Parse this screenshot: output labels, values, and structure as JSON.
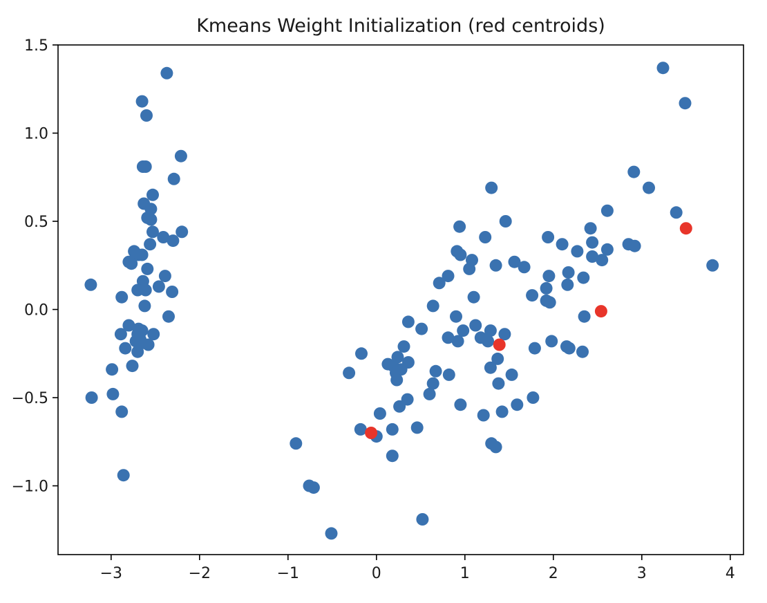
{
  "chart_data": {
    "type": "scatter",
    "title": "Kmeans Weight Initialization (red centroids)",
    "xlabel": "",
    "ylabel": "",
    "xlim": [
      -3.6,
      4.15
    ],
    "ylim": [
      -1.39,
      1.5
    ],
    "xticks": [
      -3,
      -2,
      -1,
      0,
      1,
      2,
      3,
      4
    ],
    "xtick_labels": [
      "−3",
      "−2",
      "−1",
      "0",
      "1",
      "2",
      "3",
      "4"
    ],
    "yticks": [
      -1.0,
      -0.5,
      0.0,
      0.5,
      1.0,
      1.5
    ],
    "ytick_labels": [
      "−1.0",
      "−0.5",
      "0.0",
      "0.5",
      "1.0",
      "1.5"
    ],
    "grid": false,
    "series": [
      {
        "name": "data points",
        "color": "#3a72b0",
        "points": [
          [
            -2.37,
            1.34
          ],
          [
            -2.65,
            1.18
          ],
          [
            -2.6,
            1.1
          ],
          [
            -2.64,
            0.81
          ],
          [
            -2.61,
            0.81
          ],
          [
            -2.21,
            0.87
          ],
          [
            -2.29,
            0.74
          ],
          [
            -2.53,
            0.65
          ],
          [
            -2.63,
            0.6
          ],
          [
            -2.55,
            0.57
          ],
          [
            -2.59,
            0.52
          ],
          [
            -2.55,
            0.51
          ],
          [
            -2.2,
            0.44
          ],
          [
            -2.53,
            0.44
          ],
          [
            -2.41,
            0.41
          ],
          [
            -2.3,
            0.39
          ],
          [
            -2.56,
            0.37
          ],
          [
            -2.74,
            0.33
          ],
          [
            -2.69,
            0.31
          ],
          [
            -2.65,
            0.31
          ],
          [
            -2.8,
            0.27
          ],
          [
            -2.77,
            0.26
          ],
          [
            -2.59,
            0.23
          ],
          [
            -2.39,
            0.19
          ],
          [
            -2.64,
            0.16
          ],
          [
            -2.46,
            0.13
          ],
          [
            -3.23,
            0.14
          ],
          [
            -2.7,
            0.11
          ],
          [
            -2.61,
            0.11
          ],
          [
            -2.31,
            0.1
          ],
          [
            -2.88,
            0.07
          ],
          [
            -2.62,
            0.02
          ],
          [
            -2.35,
            -0.04
          ],
          [
            -2.8,
            -0.09
          ],
          [
            -2.69,
            -0.11
          ],
          [
            -2.65,
            -0.12
          ],
          [
            -2.7,
            -0.14
          ],
          [
            -2.89,
            -0.14
          ],
          [
            -2.52,
            -0.14
          ],
          [
            -2.67,
            -0.17
          ],
          [
            -2.72,
            -0.18
          ],
          [
            -2.65,
            -0.19
          ],
          [
            -2.58,
            -0.2
          ],
          [
            -2.84,
            -0.22
          ],
          [
            -2.7,
            -0.24
          ],
          [
            -2.76,
            -0.32
          ],
          [
            -2.99,
            -0.34
          ],
          [
            -2.98,
            -0.48
          ],
          [
            -3.22,
            -0.5
          ],
          [
            -2.88,
            -0.58
          ],
          [
            -2.86,
            -0.94
          ],
          [
            3.24,
            1.37
          ],
          [
            3.49,
            1.17
          ],
          [
            2.91,
            0.78
          ],
          [
            3.08,
            0.69
          ],
          [
            2.61,
            0.56
          ],
          [
            3.39,
            0.55
          ],
          [
            1.3,
            0.69
          ],
          [
            1.46,
            0.5
          ],
          [
            2.42,
            0.46
          ],
          [
            0.94,
            0.47
          ],
          [
            1.23,
            0.41
          ],
          [
            1.94,
            0.41
          ],
          [
            2.1,
            0.37
          ],
          [
            2.44,
            0.38
          ],
          [
            2.85,
            0.37
          ],
          [
            2.92,
            0.36
          ],
          [
            2.27,
            0.33
          ],
          [
            2.61,
            0.34
          ],
          [
            0.91,
            0.33
          ],
          [
            0.95,
            0.31
          ],
          [
            2.44,
            0.3
          ],
          [
            1.08,
            0.28
          ],
          [
            1.56,
            0.27
          ],
          [
            2.55,
            0.28
          ],
          [
            3.8,
            0.25
          ],
          [
            1.35,
            0.25
          ],
          [
            1.67,
            0.24
          ],
          [
            1.05,
            0.23
          ],
          [
            2.17,
            0.21
          ],
          [
            0.81,
            0.19
          ],
          [
            1.95,
            0.19
          ],
          [
            2.34,
            0.18
          ],
          [
            0.71,
            0.15
          ],
          [
            2.16,
            0.14
          ],
          [
            1.92,
            0.12
          ],
          [
            1.76,
            0.08
          ],
          [
            1.1,
            0.07
          ],
          [
            1.92,
            0.05
          ],
          [
            1.96,
            0.04
          ],
          [
            0.64,
            0.02
          ],
          [
            0.9,
            -0.04
          ],
          [
            2.35,
            -0.04
          ],
          [
            0.36,
            -0.07
          ],
          [
            1.12,
            -0.09
          ],
          [
            0.51,
            -0.11
          ],
          [
            1.29,
            -0.12
          ],
          [
            0.98,
            -0.12
          ],
          [
            1.45,
            -0.14
          ],
          [
            0.81,
            -0.16
          ],
          [
            1.18,
            -0.16
          ],
          [
            1.26,
            -0.18
          ],
          [
            0.92,
            -0.18
          ],
          [
            1.98,
            -0.18
          ],
          [
            0.31,
            -0.21
          ],
          [
            1.79,
            -0.22
          ],
          [
            2.15,
            -0.21
          ],
          [
            2.18,
            -0.22
          ],
          [
            2.33,
            -0.24
          ],
          [
            -0.17,
            -0.25
          ],
          [
            0.24,
            -0.27
          ],
          [
            1.37,
            -0.28
          ],
          [
            0.13,
            -0.31
          ],
          [
            0.36,
            -0.3
          ],
          [
            0.19,
            -0.32
          ],
          [
            1.29,
            -0.33
          ],
          [
            0.28,
            -0.34
          ],
          [
            0.67,
            -0.35
          ],
          [
            -0.31,
            -0.36
          ],
          [
            0.22,
            -0.36
          ],
          [
            0.82,
            -0.37
          ],
          [
            1.53,
            -0.37
          ],
          [
            0.23,
            -0.4
          ],
          [
            0.64,
            -0.42
          ],
          [
            1.38,
            -0.42
          ],
          [
            0.6,
            -0.48
          ],
          [
            1.77,
            -0.5
          ],
          [
            0.35,
            -0.51
          ],
          [
            0.26,
            -0.55
          ],
          [
            0.95,
            -0.54
          ],
          [
            1.59,
            -0.54
          ],
          [
            1.42,
            -0.58
          ],
          [
            0.04,
            -0.59
          ],
          [
            1.21,
            -0.6
          ],
          [
            -0.18,
            -0.68
          ],
          [
            0.18,
            -0.68
          ],
          [
            0.46,
            -0.67
          ],
          [
            0,
            -0.72
          ],
          [
            0.18,
            -0.83
          ],
          [
            1.3,
            -0.76
          ],
          [
            1.35,
            -0.78
          ],
          [
            -0.91,
            -0.76
          ],
          [
            -0.76,
            -1.0
          ],
          [
            -0.71,
            -1.01
          ],
          [
            -0.51,
            -1.27
          ],
          [
            0.52,
            -1.19
          ]
        ]
      },
      {
        "name": "centroids",
        "color": "#e8352a",
        "points": [
          [
            3.5,
            0.46
          ],
          [
            2.54,
            -0.01
          ],
          [
            1.39,
            -0.2
          ],
          [
            -0.06,
            -0.7
          ]
        ]
      }
    ]
  }
}
